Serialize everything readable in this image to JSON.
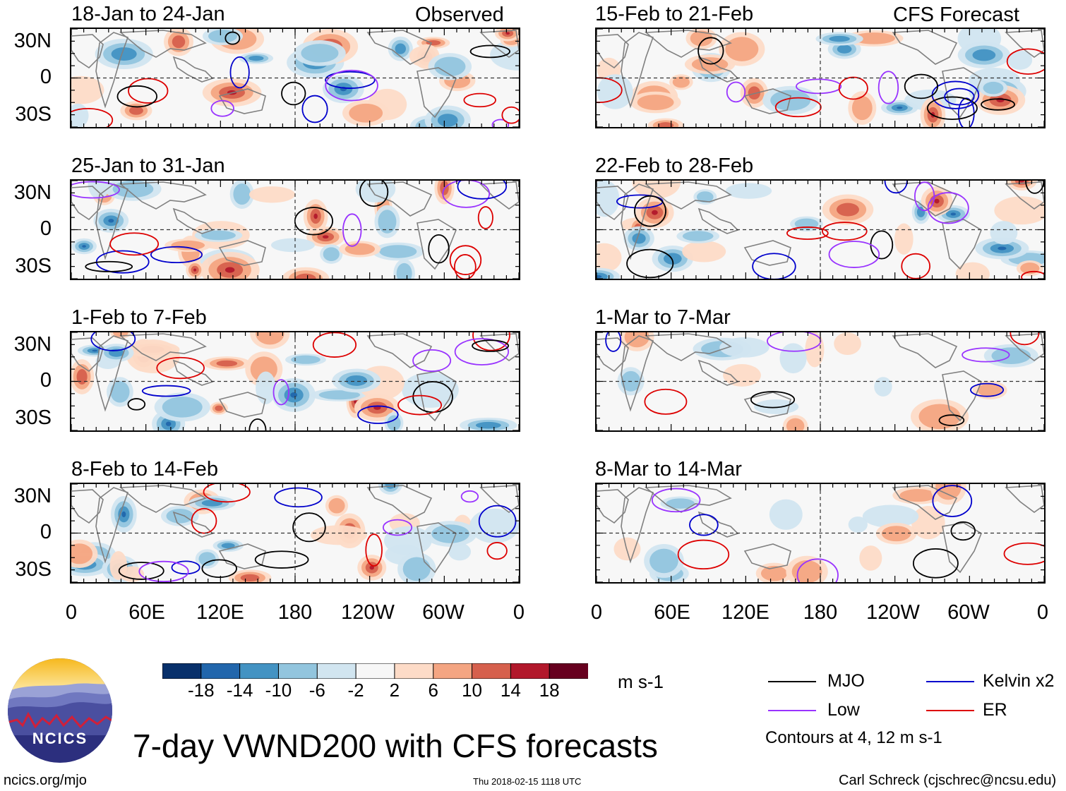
{
  "main_title": "7-day VWND200 with CFS forecasts",
  "observed_label": "Observed",
  "forecast_label": "CFS Forecast",
  "left_panels": [
    {
      "title": "18-Jan to 24-Jan"
    },
    {
      "title": "25-Jan to 31-Jan"
    },
    {
      "title": "1-Feb to 7-Feb"
    },
    {
      "title": "8-Feb to 14-Feb"
    }
  ],
  "right_panels": [
    {
      "title": "15-Feb to 21-Feb"
    },
    {
      "title": "22-Feb to 28-Feb"
    },
    {
      "title": "1-Mar to 7-Mar"
    },
    {
      "title": "8-Mar to 14-Mar"
    }
  ],
  "y_ticks": [
    "30N",
    "0",
    "30S"
  ],
  "x_ticks": [
    "0",
    "60E",
    "120E",
    "180",
    "120W",
    "60W",
    "0"
  ],
  "colorbar": {
    "units": "m s-1",
    "labels": [
      "-18",
      "-14",
      "-10",
      "-6",
      "-2",
      "2",
      "6",
      "10",
      "14",
      "18"
    ],
    "colors": [
      "#08306b",
      "#2166ac",
      "#4393c3",
      "#92c5de",
      "#d1e5f0",
      "#f7f7f7",
      "#fddbc7",
      "#f4a582",
      "#d6604d",
      "#b2182b",
      "#67001f"
    ]
  },
  "legend": {
    "items": [
      {
        "label": "MJO",
        "color": "#000000"
      },
      {
        "label": "Kelvin x2",
        "color": "#0000cc"
      },
      {
        "label": "Low",
        "color": "#9933ff"
      },
      {
        "label": "ER",
        "color": "#dd0000"
      }
    ],
    "note": "Contours at 4, 12 m s-1"
  },
  "logo_text": "NCICS",
  "footer": {
    "website": "ncics.org/mjo",
    "timestamp": "Thu 2018-02-15 1118 UTC",
    "credit": "Carl Schreck (cjschrec@ncsu.edu)"
  }
}
